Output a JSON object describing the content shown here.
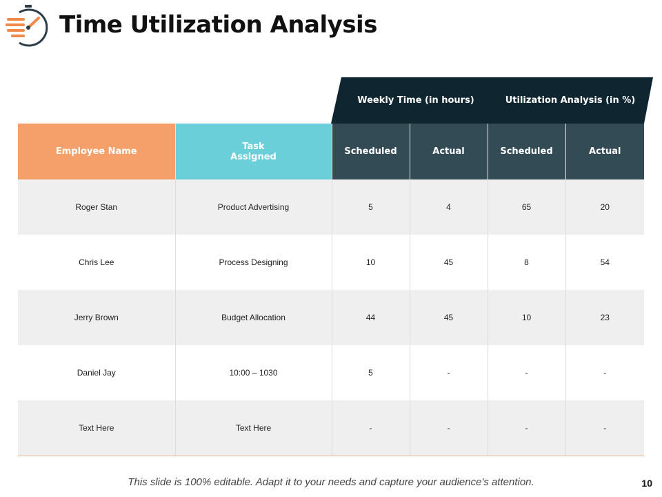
{
  "title": "Time Utilization Analysis",
  "icon": "stopwatch-icon",
  "colors": {
    "accent": "#f08a4b",
    "employee_header": "#f5a06a",
    "task_header": "#6bcfda",
    "dark_header": "#334b55",
    "group_header": "#0f2530",
    "row_shade": "#efefef"
  },
  "groups": {
    "weekly": "Weekly Time (in hours)",
    "utilization": "Utilization Analysis (in %)"
  },
  "columns": {
    "employee": "Employee Name",
    "task_line1": "Task",
    "task_line2": "Assigned",
    "weekly_scheduled": "Scheduled",
    "weekly_actual": "Actual",
    "util_scheduled": "Scheduled",
    "util_actual": "Actual"
  },
  "rows": [
    {
      "name": "Roger Stan",
      "task": "Product Advertising",
      "w_sched": "5",
      "w_actual": "4",
      "u_sched": "65",
      "u_actual": "20"
    },
    {
      "name": "Chris Lee",
      "task": "Process Designing",
      "w_sched": "10",
      "w_actual": "45",
      "u_sched": "8",
      "u_actual": "54"
    },
    {
      "name": "Jerry Brown",
      "task": "Budget Allocation",
      "w_sched": "44",
      "w_actual": "45",
      "u_sched": "10",
      "u_actual": "23"
    },
    {
      "name": "Daniel Jay",
      "task": "10:00 – 1030",
      "w_sched": "5",
      "w_actual": "-",
      "u_sched": "-",
      "u_actual": "-"
    },
    {
      "name": "Text Here",
      "task": "Text Here",
      "w_sched": "-",
      "w_actual": "-",
      "u_sched": "-",
      "u_actual": "-"
    }
  ],
  "footer": "This slide is 100% editable. Adapt it to your needs and capture your audience's attention.",
  "page_number": "10"
}
